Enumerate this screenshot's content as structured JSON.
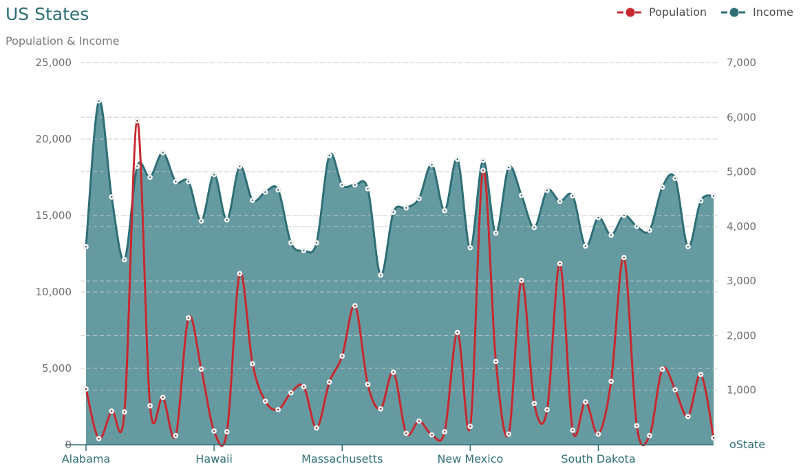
{
  "chart_data": {
    "type": "line",
    "title": "US States",
    "subtitle": "Population & Income",
    "x_tick_labels": [
      "Alabama",
      "Hawaii",
      "Massachusetts",
      "New Mexico",
      "South Dakota"
    ],
    "x_tick_indices": [
      0,
      10,
      20,
      30,
      40
    ],
    "y_left": {
      "min": 0,
      "max": 25000,
      "ticks": [
        0,
        5000,
        10000,
        15000,
        20000,
        25000
      ],
      "tick_labels": [
        "0",
        "5,000",
        "10,000",
        "15,000",
        "20,000",
        "25,000"
      ]
    },
    "y_right": {
      "min": 0,
      "max": 7000,
      "ticks": [
        1000,
        2000,
        3000,
        4000,
        5000,
        6000,
        7000
      ],
      "tick_labels": [
        "1,000",
        "2,000",
        "3,000",
        "4,000",
        "5,000",
        "6,000",
        "7,000"
      ],
      "zero_label": "oState"
    },
    "legend_position": "top-right",
    "series": [
      {
        "name": "Income",
        "axis": "right",
        "kind": "area",
        "color": "#2d6e76",
        "fill": "#669aa1",
        "values": [
          3630,
          6300,
          4540,
          3390,
          5100,
          4900,
          5350,
          4820,
          4820,
          4100,
          4950,
          4120,
          5100,
          4480,
          4630,
          4670,
          3700,
          3560,
          3700,
          5300,
          4760,
          4760,
          4690,
          3110,
          4260,
          4340,
          4510,
          5130,
          4290,
          5230,
          3610,
          5210,
          3880,
          5080,
          4570,
          3980,
          4660,
          4460,
          4560,
          3640,
          4160,
          3840,
          4200,
          4000,
          3930,
          4720,
          4880,
          3630,
          4470,
          4560
        ]
      },
      {
        "name": "Population",
        "axis": "left",
        "kind": "line",
        "color": "#c8282f",
        "values": [
          3650,
          400,
          2200,
          2150,
          21200,
          2550,
          3100,
          600,
          8300,
          4950,
          900,
          850,
          11200,
          5300,
          2850,
          2300,
          3400,
          3800,
          1100,
          4100,
          5800,
          9100,
          3950,
          2350,
          4750,
          750,
          1550,
          650,
          850,
          7350,
          1200,
          17950,
          5450,
          700,
          10750,
          2700,
          2300,
          11850,
          950,
          2800,
          700,
          4150,
          12250,
          1250,
          600,
          4950,
          3600,
          1850,
          4600,
          450
        ]
      }
    ]
  }
}
